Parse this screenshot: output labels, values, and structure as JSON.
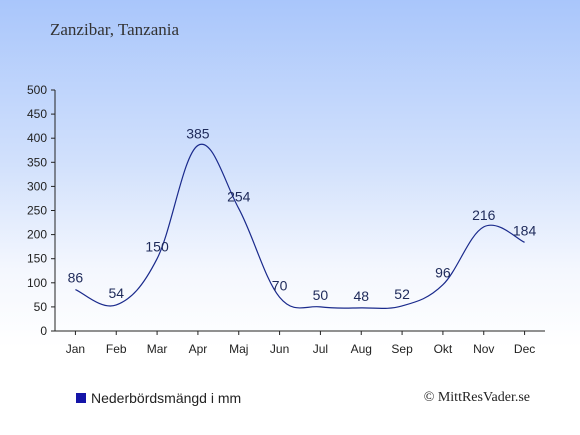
{
  "header": {
    "title": "Zanzibar, Tanzania"
  },
  "chart_data": {
    "type": "line",
    "categories": [
      "Jan",
      "Feb",
      "Mar",
      "Apr",
      "Maj",
      "Jun",
      "Jul",
      "Aug",
      "Sep",
      "Okt",
      "Nov",
      "Dec"
    ],
    "series": [
      {
        "name": "Nederbördsmängd i mm",
        "values": [
          86,
          54,
          150,
          385,
          254,
          70,
          50,
          48,
          52,
          96,
          216,
          184
        ]
      }
    ],
    "title": "Zanzibar, Tanzania",
    "xlabel": "",
    "ylabel": "",
    "ylim": [
      0,
      500
    ],
    "yticks": [
      0,
      50,
      100,
      150,
      200,
      250,
      300,
      350,
      400,
      450,
      500
    ],
    "grid": false,
    "legend_position": "bottom-left",
    "line_color": "#1a2a8c",
    "legend_color": "#1515a8"
  },
  "legend": {
    "label": "Nederbördsmängd i mm"
  },
  "footer": {
    "copyright": "© MittResVader.se"
  }
}
